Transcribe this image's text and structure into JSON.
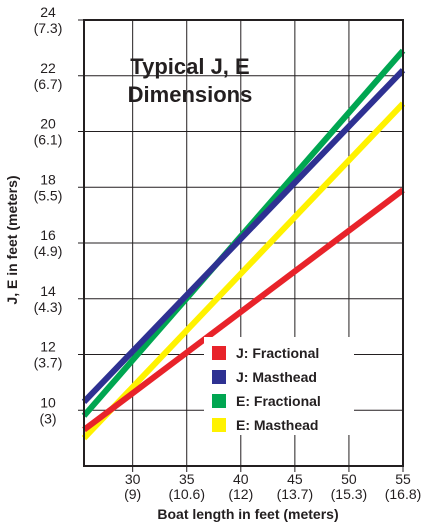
{
  "chart_data": {
    "type": "line",
    "title": "Typical J, E",
    "subtitle": "Dimensions",
    "xlabel": "Boat length in feet (meters)",
    "ylabel": "J, E in feet (meters)",
    "xlim": [
      25.5,
      55
    ],
    "ylim": [
      8,
      24
    ],
    "grid": true,
    "legend_position": "bottom-right",
    "x_ticks": [
      {
        "value": 30,
        "label": "30",
        "sublabel": "(9)"
      },
      {
        "value": 35,
        "label": "35",
        "sublabel": "(10.6)"
      },
      {
        "value": 40,
        "label": "40",
        "sublabel": "(12)"
      },
      {
        "value": 45,
        "label": "45",
        "sublabel": "(13.7)"
      },
      {
        "value": 50,
        "label": "50",
        "sublabel": "(15.3)"
      },
      {
        "value": 55,
        "label": "55",
        "sublabel": "(16.8)"
      }
    ],
    "y_ticks": [
      {
        "value": 10,
        "label": "10",
        "sublabel": "(3)"
      },
      {
        "value": 12,
        "label": "12",
        "sublabel": "(3.7)"
      },
      {
        "value": 14,
        "label": "14",
        "sublabel": "(4.3)"
      },
      {
        "value": 16,
        "label": "16",
        "sublabel": "(4.9)"
      },
      {
        "value": 18,
        "label": "18",
        "sublabel": "(5.5)"
      },
      {
        "value": 20,
        "label": "20",
        "sublabel": "(6.1)"
      },
      {
        "value": 22,
        "label": "22",
        "sublabel": "(6.7)"
      },
      {
        "value": 24,
        "label": "24",
        "sublabel": "(7.3)"
      }
    ],
    "series": [
      {
        "name": "J:  Fractional",
        "color": "#e8232a",
        "x": [
          25.5,
          55
        ],
        "y": [
          9.3,
          17.9
        ]
      },
      {
        "name": "J:  Masthead",
        "color": "#2e3192",
        "x": [
          25.5,
          55
        ],
        "y": [
          10.3,
          22.2
        ]
      },
      {
        "name": "E:  Fractional",
        "color": "#00a651",
        "x": [
          25.5,
          55
        ],
        "y": [
          9.8,
          22.9
        ]
      },
      {
        "name": "E:  Masthead",
        "color": "#fff200",
        "x": [
          25.5,
          55
        ],
        "y": [
          9.0,
          21.0
        ]
      }
    ],
    "draw_order": [
      2,
      1,
      3,
      0
    ]
  }
}
